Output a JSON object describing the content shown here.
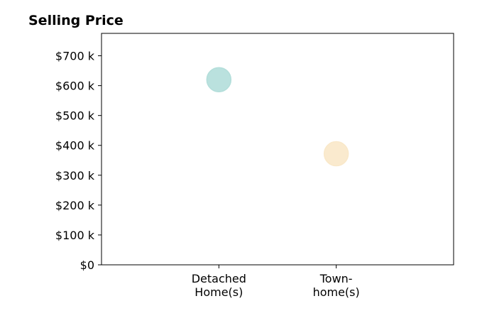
{
  "chart_data": {
    "type": "scatter",
    "title": "Selling Price",
    "categories": [
      [
        "Detached",
        "Home(s)"
      ],
      [
        "Town-",
        "home(s)"
      ]
    ],
    "values": [
      620,
      372
    ],
    "colors": [
      "#b3deda",
      "#f9e8c9"
    ],
    "ylim": [
      0,
      775
    ],
    "yticks": [
      0,
      100,
      200,
      300,
      400,
      500,
      600,
      700
    ],
    "ytick_labels": [
      "$0",
      "$100 k",
      "$200 k",
      "$300 k",
      "$400 k",
      "$500 k",
      "$600 k",
      "$700 k"
    ],
    "xlim": [
      -1,
      2
    ],
    "grid": false,
    "legend": false
  }
}
